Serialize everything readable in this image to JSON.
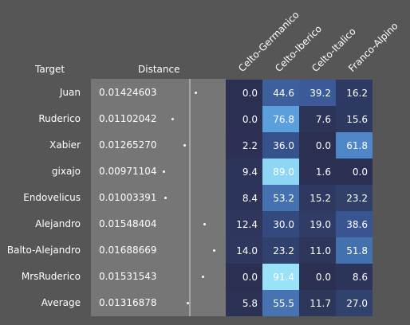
{
  "headers": {
    "target": "Target",
    "distance": "Distance",
    "columns": [
      "Celto-Germanico",
      "Celto-Iberico",
      "Celto-Italico",
      "Franco-Alpino"
    ]
  },
  "rows": [
    {
      "target": "Juan",
      "distance": "0.01424603",
      "values": [
        "0.0",
        "44.6",
        "39.2",
        "16.2"
      ],
      "colors": [
        "#2b2f52",
        "#3d5f9c",
        "#3c5a97",
        "#2e3a63"
      ]
    },
    {
      "target": "Ruderico",
      "distance": "0.01102042",
      "values": [
        "0.0",
        "76.8",
        "7.6",
        "15.6"
      ],
      "colors": [
        "#2b2f52",
        "#5b9fdc",
        "#2c3457",
        "#2e3961"
      ]
    },
    {
      "target": "Xabier",
      "distance": "0.01265270",
      "values": [
        "2.2",
        "36.0",
        "0.0",
        "61.8"
      ],
      "colors": [
        "#2d3054",
        "#36528c",
        "#2b2f52",
        "#4f86c8"
      ]
    },
    {
      "target": "gixajo",
      "distance": "0.00971104",
      "values": [
        "9.4",
        "89.0",
        "1.6",
        "0.0"
      ],
      "colors": [
        "#2d345a",
        "#8dd6f4",
        "#2c3053",
        "#2b2f52"
      ]
    },
    {
      "target": "Endovelicus",
      "distance": "0.01003391",
      "values": [
        "8.4",
        "53.2",
        "15.2",
        "23.2"
      ],
      "colors": [
        "#2d3459",
        "#4571b0",
        "#2e3860",
        "#304069"
      ]
    },
    {
      "target": "Alejandro",
      "distance": "0.01548404",
      "values": [
        "12.4",
        "30.0",
        "19.0",
        "38.6"
      ],
      "colors": [
        "#2e365d",
        "#34497d",
        "#2f3c66",
        "#385591"
      ]
    },
    {
      "target": "Balto-Alejandro",
      "distance": "0.01688669",
      "values": [
        "14.0",
        "23.2",
        "11.0",
        "51.8"
      ],
      "colors": [
        "#2e375e",
        "#31416d",
        "#2d355b",
        "#4271ad"
      ]
    },
    {
      "target": "MrsRuderico",
      "distance": "0.01531543",
      "values": [
        "0.0",
        "91.4",
        "0.0",
        "8.6"
      ],
      "colors": [
        "#2b2f52",
        "#9ae2f8",
        "#2b2f52",
        "#2d3459"
      ]
    },
    {
      "target": "Average",
      "distance": "0.01316878",
      "values": [
        "5.8",
        "55.5",
        "11.7",
        "27.0"
      ],
      "colors": [
        "#2c3156",
        "#4873b2",
        "#2d365b",
        "#31426e"
      ]
    }
  ]
}
